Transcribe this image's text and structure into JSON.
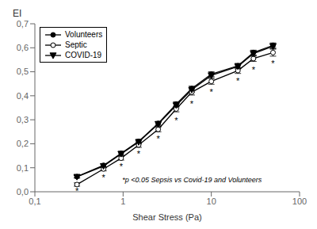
{
  "chart_data": {
    "type": "line",
    "xlabel": "Shear Stress (Pa)",
    "ylabel": "EI",
    "annotation": "*p <0.05 Sepsis vs Covid-19 and Volunteers",
    "log": "x",
    "grid": false,
    "legend": "upper left",
    "x": [
      0.3,
      0.6,
      0.95,
      1.5,
      2.5,
      4.0,
      6.0,
      10.0,
      20.0,
      30.0,
      50.0
    ],
    "series": [
      {
        "name": "Volunteers",
        "color": "#000000",
        "marker": "circle",
        "values": [
          0.063,
          0.11,
          0.16,
          0.21,
          0.285,
          0.365,
          0.43,
          0.49,
          0.525,
          0.58,
          0.61
        ],
        "errors": [
          0.005,
          0.007,
          0.008,
          0.008,
          0.008,
          0.01,
          0.01,
          0.01,
          0.01,
          0.01,
          0.01
        ]
      },
      {
        "name": "Septic",
        "color": "#000000",
        "marker": "open_circle",
        "values": [
          0.03,
          0.095,
          0.14,
          0.195,
          0.26,
          0.345,
          0.415,
          0.46,
          0.505,
          0.555,
          0.58
        ],
        "errors": [
          0.007,
          0.008,
          0.008,
          0.01,
          0.01,
          0.012,
          0.012,
          0.012,
          0.012,
          0.012,
          0.015
        ]
      },
      {
        "name": "COVID-19",
        "color": "#000000",
        "marker": "triangle_down",
        "values": [
          0.062,
          0.107,
          0.158,
          0.207,
          0.282,
          0.36,
          0.425,
          0.485,
          0.522,
          0.576,
          0.606
        ],
        "errors": [
          0.005,
          0.007,
          0.009,
          0.008,
          0.009,
          0.01,
          0.01,
          0.01,
          0.01,
          0.011,
          0.011
        ]
      }
    ],
    "point_annotations": [
      {
        "text": "*",
        "x": 0.3,
        "y": 0.018
      },
      {
        "text": "*",
        "x": 0.6,
        "y": 0.072
      },
      {
        "text": "*",
        "x": 0.95,
        "y": 0.118
      },
      {
        "text": "*",
        "x": 1.5,
        "y": 0.172
      },
      {
        "text": "*",
        "x": 2.5,
        "y": 0.235
      },
      {
        "text": "*",
        "x": 4.0,
        "y": 0.31
      },
      {
        "text": "*",
        "x": 6.0,
        "y": 0.38
      },
      {
        "text": "*",
        "x": 10.0,
        "y": 0.43
      },
      {
        "text": "*",
        "x": 20.0,
        "y": 0.475
      },
      {
        "text": "*",
        "x": 30.0,
        "y": 0.522
      },
      {
        "text": "*",
        "x": 50.0,
        "y": 0.548
      }
    ],
    "xlim": [
      0.1,
      100
    ],
    "xticks": [
      {
        "value": 0.1,
        "label": "0,1"
      },
      1,
      10,
      100
    ],
    "ylim": [
      0.0,
      0.7
    ],
    "yticks": [
      {
        "value": 0.0,
        "label": "0,0"
      },
      {
        "value": 0.1,
        "label": "0,1"
      },
      {
        "value": 0.2,
        "label": "0,2"
      },
      {
        "value": 0.3,
        "label": "0,3"
      },
      {
        "value": 0.4,
        "label": "0,4"
      },
      {
        "value": 0.5,
        "label": "0,5"
      },
      {
        "value": 0.6,
        "label": "0,6"
      },
      {
        "value": 0.7,
        "label": "0,7"
      }
    ]
  }
}
